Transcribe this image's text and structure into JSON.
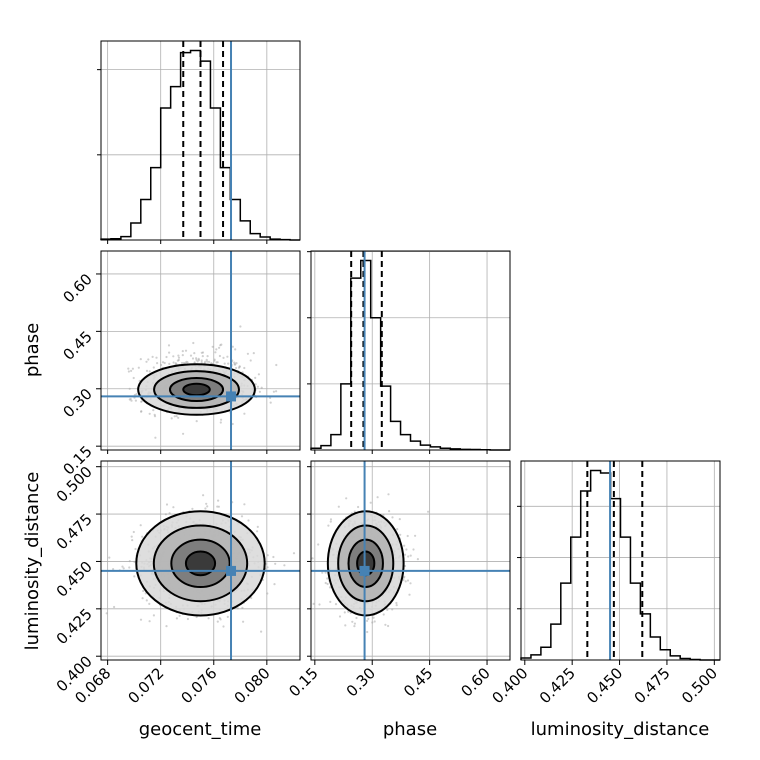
{
  "chart_data": {
    "type": "corner",
    "parameters": [
      {
        "key": "geocent_time",
        "label": "geocent_time",
        "range": [
          0.0675,
          0.0825
        ],
        "ticks": [
          0.068,
          0.072,
          0.076,
          0.08
        ],
        "tick_labels": [
          "0.068",
          "0.072",
          "0.076",
          "0.080"
        ]
      },
      {
        "key": "phase",
        "label": "phase",
        "range": [
          0.14,
          0.66
        ],
        "ticks": [
          0.15,
          0.3,
          0.45,
          0.6
        ],
        "tick_labels": [
          "0.15",
          "0.30",
          "0.45",
          "0.60"
        ]
      },
      {
        "key": "luminosity_distance",
        "label": "luminosity_distance",
        "range": [
          0.398,
          0.503
        ],
        "ticks": [
          0.4,
          0.425,
          0.45,
          0.475,
          0.5
        ],
        "tick_labels": [
          "0.400",
          "0.425",
          "0.450",
          "0.475",
          "0.500"
        ]
      }
    ],
    "truths": {
      "geocent_time": 0.0773,
      "phase": 0.28,
      "luminosity_distance": 0.445
    },
    "quantiles": {
      "geocent_time": [
        0.0737,
        0.075,
        0.0767
      ],
      "phase": [
        0.245,
        0.277,
        0.325
      ],
      "luminosity_distance": [
        0.433,
        0.447,
        0.462
      ]
    },
    "histograms": {
      "geocent_time": {
        "edges_range": [
          0.0675,
          0.0825
        ],
        "bins": 20,
        "counts": [
          2,
          3,
          8,
          40,
          95,
          170,
          310,
          360,
          440,
          445,
          420,
          310,
          170,
          95,
          45,
          15,
          7,
          2,
          1,
          0
        ]
      },
      "phase": {
        "edges_range": [
          0.14,
          0.66
        ],
        "bins": 20,
        "counts": [
          8,
          20,
          70,
          300,
          780,
          860,
          600,
          290,
          130,
          70,
          40,
          22,
          14,
          8,
          5,
          3,
          2,
          1,
          0,
          0
        ]
      },
      "luminosity_distance": {
        "edges_range": [
          0.398,
          0.503
        ],
        "bins": 20,
        "counts": [
          4,
          10,
          25,
          70,
          150,
          240,
          330,
          370,
          365,
          315,
          240,
          150,
          90,
          45,
          20,
          8,
          3,
          1,
          0,
          0
        ]
      }
    },
    "density_2d": {
      "phase_vs_geocent_time": {
        "center": [
          0.0747,
          0.298
        ],
        "sigma": [
          0.002,
          0.03
        ],
        "rho": 0.0
      },
      "luminosity_distance_vs_geocent_time": {
        "center": [
          0.075,
          0.449
        ],
        "sigma": [
          0.0022,
          0.0125
        ],
        "rho": 0.0
      },
      "luminosity_distance_vs_phase": {
        "center": [
          0.283,
          0.449
        ],
        "sigma": [
          0.045,
          0.0125
        ],
        "rho": 0.0
      }
    },
    "grid": true,
    "truth_color": "#4682b4",
    "line_color": "#000000",
    "scatter_color": "#aaaaaa"
  }
}
